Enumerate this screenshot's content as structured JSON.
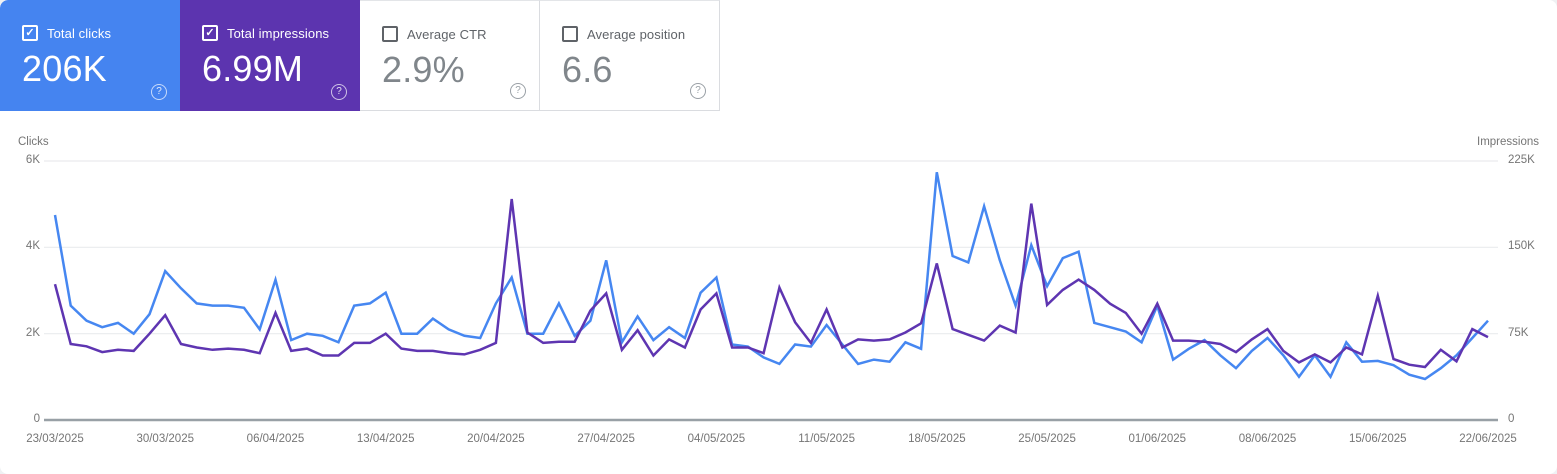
{
  "cards": [
    {
      "label": "Total clicks",
      "value": "206K",
      "checked": true,
      "check_glyph": "✓",
      "help_glyph": "?",
      "bg": "#4584f0"
    },
    {
      "label": "Total impressions",
      "value": "6.99M",
      "checked": true,
      "check_glyph": "✓",
      "help_glyph": "?",
      "bg": "#5c34af"
    },
    {
      "label": "Average CTR",
      "value": "2.9%",
      "checked": false,
      "check_glyph": "",
      "help_glyph": "?",
      "bg": "#ffffff"
    },
    {
      "label": "Average position",
      "value": "6.6",
      "checked": false,
      "check_glyph": "",
      "help_glyph": "?",
      "bg": "#ffffff"
    }
  ],
  "chart_data": {
    "type": "line",
    "frequency": "daily",
    "start_date": "23/03/2025",
    "end_date": "22/06/2025",
    "grid": "horizontal",
    "left_axis": {
      "title": "Clicks",
      "max": 6000,
      "ticks": [
        "6K",
        "4K",
        "2K",
        "0"
      ]
    },
    "right_axis": {
      "title": "Impressions",
      "max": 225000,
      "ticks": [
        "225K",
        "150K",
        "75K",
        "0"
      ]
    },
    "x_tick_labels": [
      "23/03/2025",
      "30/03/2025",
      "06/04/2025",
      "13/04/2025",
      "20/04/2025",
      "27/04/2025",
      "04/05/2025",
      "11/05/2025",
      "18/05/2025",
      "25/05/2025",
      "01/06/2025",
      "08/06/2025",
      "15/06/2025",
      "22/06/2025"
    ],
    "series": [
      {
        "name": "Total clicks",
        "axis": "left",
        "color": "#4687f1",
        "values": [
          4750,
          2650,
          2300,
          2150,
          2250,
          2000,
          2450,
          3450,
          3050,
          2700,
          2650,
          2650,
          2600,
          2100,
          3250,
          1850,
          2000,
          1950,
          1800,
          2650,
          2700,
          2950,
          2000,
          2000,
          2350,
          2100,
          1950,
          1900,
          2700,
          3300,
          2000,
          2000,
          2700,
          1950,
          2300,
          3700,
          1800,
          2400,
          1850,
          2150,
          1900,
          2950,
          3300,
          1750,
          1700,
          1450,
          1300,
          1750,
          1700,
          2200,
          1750,
          1300,
          1400,
          1350,
          1800,
          1650,
          5740,
          3800,
          3650,
          4950,
          3700,
          2650,
          4050,
          3100,
          3750,
          3900,
          2250,
          2150,
          2050,
          1800,
          2650,
          1400,
          1650,
          1850,
          1500,
          1200,
          1600,
          1900,
          1500,
          1000,
          1500,
          1000,
          1800,
          1350,
          1370,
          1270,
          1050,
          950,
          1200,
          1500,
          1900,
          2300
        ]
      },
      {
        "name": "Total impressions",
        "axis": "right",
        "color": "#5e35b1",
        "values": [
          118000,
          66000,
          64000,
          59000,
          61000,
          60000,
          75000,
          91000,
          66000,
          63000,
          61000,
          62000,
          61000,
          58000,
          93000,
          60000,
          62000,
          56000,
          56000,
          67000,
          67000,
          75000,
          62000,
          60000,
          60000,
          58000,
          57000,
          61000,
          67000,
          192000,
          76000,
          67000,
          68000,
          68000,
          95000,
          110000,
          61000,
          78000,
          56000,
          70000,
          63000,
          96000,
          110000,
          63000,
          63000,
          58000,
          115000,
          85000,
          67000,
          96000,
          63000,
          70000,
          69000,
          70000,
          76000,
          84000,
          136000,
          79000,
          74000,
          69000,
          82000,
          76000,
          188000,
          100000,
          113000,
          122000,
          113000,
          101000,
          93000,
          75000,
          101000,
          69000,
          69000,
          68000,
          66000,
          59000,
          70000,
          79000,
          60000,
          50000,
          57000,
          50000,
          63000,
          57000,
          108000,
          53000,
          48000,
          46000,
          61000,
          51000,
          79000,
          72000
        ]
      }
    ]
  }
}
